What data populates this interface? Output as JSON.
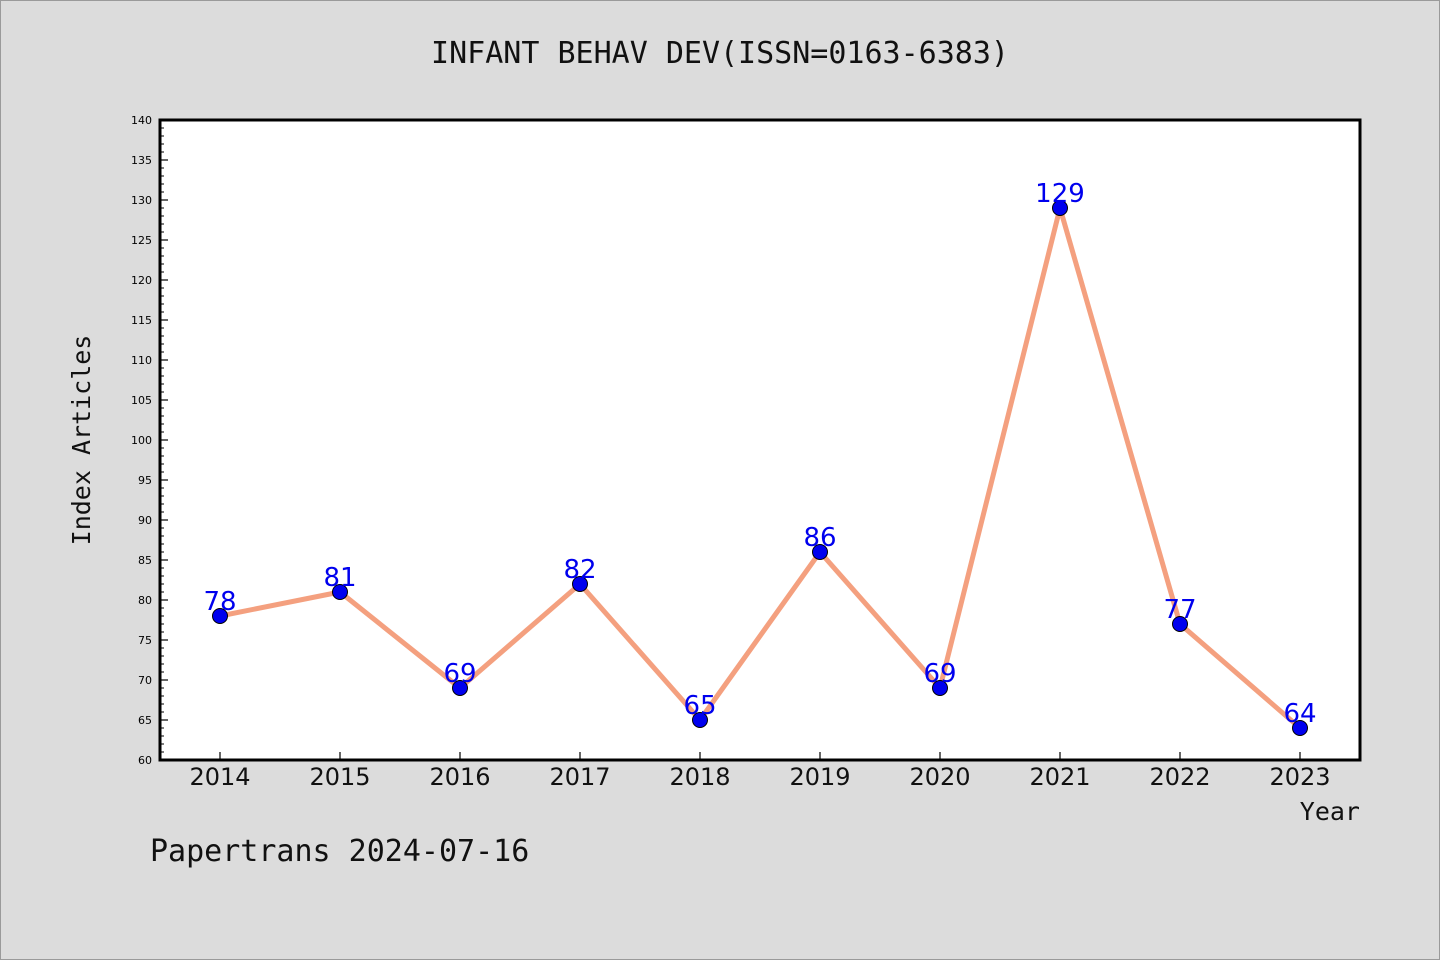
{
  "chart_data": {
    "type": "line",
    "title": "INFANT BEHAV DEV(ISSN=0163-6383)",
    "xlabel": "Year",
    "ylabel": "Index Articles",
    "categories": [
      "2014",
      "2015",
      "2016",
      "2017",
      "2018",
      "2019",
      "2020",
      "2021",
      "2022",
      "2023"
    ],
    "values": [
      78,
      81,
      69,
      82,
      65,
      86,
      69,
      129,
      77,
      64
    ],
    "data_labels": [
      "78",
      "81",
      "69",
      "82",
      "65",
      "86",
      "69",
      "129",
      "77",
      "64"
    ],
    "ylim": [
      60,
      140
    ],
    "yticks": [
      "60",
      "65",
      "70",
      "75",
      "80",
      "85",
      "90",
      "95",
      "100",
      "105",
      "110",
      "115",
      "120",
      "125",
      "130",
      "135",
      "140"
    ],
    "grid": false,
    "colors": {
      "line": "#f4a07f",
      "marker": "#0000ee",
      "data_label": "#0000ee"
    }
  },
  "footer": {
    "note": "Papertrans 2024-07-16"
  }
}
